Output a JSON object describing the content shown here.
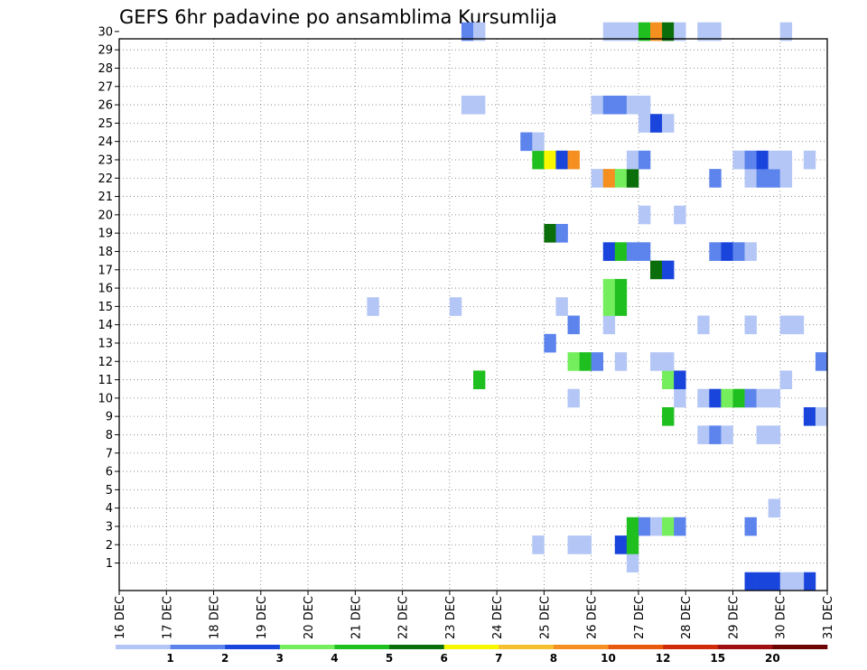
{
  "chart_data": {
    "type": "heatmap",
    "title": "GEFS 6hr padavine po ansamblima Kursumlija",
    "xlabel": "",
    "ylabel": "",
    "x_ticks": [
      "16 DEC",
      "17 DEC",
      "18 DEC",
      "19 DEC",
      "20 DEC",
      "21 DEC",
      "22 DEC",
      "23 DEC",
      "24 DEC",
      "25 DEC",
      "26 DEC",
      "27 DEC",
      "28 DEC",
      "29 DEC",
      "30 DEC",
      "31 DEC"
    ],
    "y_ticks": [
      1,
      2,
      3,
      4,
      5,
      6,
      7,
      8,
      9,
      10,
      11,
      12,
      13,
      14,
      15,
      16,
      17,
      18,
      19,
      20,
      21,
      22,
      23,
      24,
      25,
      26,
      27,
      28,
      29,
      30
    ],
    "ylim": [
      0,
      30
    ],
    "grid": true,
    "x_unit": "6-hour step from 16 DEC 00",
    "legend": {
      "position": "bottom",
      "labels": [
        "1",
        "2",
        "3",
        "4",
        "5",
        "6",
        "7",
        "8",
        "10",
        "12",
        "15",
        "20"
      ],
      "colors": [
        "#b3c6f5",
        "#5c84ec",
        "#1a45dc",
        "#74ee5c",
        "#1fbf1f",
        "#0a6e0a",
        "#f7f700",
        "#f5bf30",
        "#f58f20",
        "#ea5a0d",
        "#d12a0a",
        "#a11010",
        "#6e0505"
      ]
    },
    "cells": [
      {
        "m": 0,
        "x": 53,
        "c": 2
      },
      {
        "m": 0,
        "x": 54,
        "c": 2
      },
      {
        "m": 0,
        "x": 55,
        "c": 2
      },
      {
        "m": 0,
        "x": 58,
        "c": 2
      },
      {
        "m": 0,
        "x": 56,
        "c": 0
      },
      {
        "m": 0,
        "x": 57,
        "c": 0
      },
      {
        "m": 1,
        "x": 43,
        "c": 0
      },
      {
        "m": 2,
        "x": 35,
        "c": 0
      },
      {
        "m": 2,
        "x": 38,
        "c": 0
      },
      {
        "m": 2,
        "x": 39,
        "c": 0
      },
      {
        "m": 2,
        "x": 42,
        "c": 2
      },
      {
        "m": 2,
        "x": 43,
        "c": 4
      },
      {
        "m": 3,
        "x": 43,
        "c": 4
      },
      {
        "m": 3,
        "x": 44,
        "c": 1
      },
      {
        "m": 3,
        "x": 45,
        "c": 0
      },
      {
        "m": 3,
        "x": 46,
        "c": 3
      },
      {
        "m": 3,
        "x": 47,
        "c": 1
      },
      {
        "m": 3,
        "x": 53,
        "c": 1
      },
      {
        "m": 4,
        "x": 55,
        "c": 0
      },
      {
        "m": 8,
        "x": 49,
        "c": 0
      },
      {
        "m": 8,
        "x": 50,
        "c": 1
      },
      {
        "m": 8,
        "x": 51,
        "c": 0
      },
      {
        "m": 8,
        "x": 54,
        "c": 0
      },
      {
        "m": 8,
        "x": 55,
        "c": 0
      },
      {
        "m": 9,
        "x": 46,
        "c": 4
      },
      {
        "m": 9,
        "x": 58,
        "c": 2
      },
      {
        "m": 9,
        "x": 59,
        "c": 0
      },
      {
        "m": 10,
        "x": 38,
        "c": 0
      },
      {
        "m": 10,
        "x": 47,
        "c": 0
      },
      {
        "m": 10,
        "x": 49,
        "c": 0
      },
      {
        "m": 10,
        "x": 50,
        "c": 2
      },
      {
        "m": 10,
        "x": 51,
        "c": 3
      },
      {
        "m": 10,
        "x": 52,
        "c": 4
      },
      {
        "m": 10,
        "x": 53,
        "c": 1
      },
      {
        "m": 10,
        "x": 54,
        "c": 0
      },
      {
        "m": 10,
        "x": 55,
        "c": 0
      },
      {
        "m": 11,
        "x": 30,
        "c": 4
      },
      {
        "m": 11,
        "x": 46,
        "c": 3
      },
      {
        "m": 11,
        "x": 47,
        "c": 2
      },
      {
        "m": 11,
        "x": 56,
        "c": 0
      },
      {
        "m": 12,
        "x": 38,
        "c": 3
      },
      {
        "m": 12,
        "x": 39,
        "c": 4
      },
      {
        "m": 12,
        "x": 40,
        "c": 1
      },
      {
        "m": 12,
        "x": 42,
        "c": 0
      },
      {
        "m": 12,
        "x": 45,
        "c": 0
      },
      {
        "m": 12,
        "x": 46,
        "c": 0
      },
      {
        "m": 12,
        "x": 59,
        "c": 1
      },
      {
        "m": 13,
        "x": 36,
        "c": 1
      },
      {
        "m": 14,
        "x": 38,
        "c": 1
      },
      {
        "m": 14,
        "x": 41,
        "c": 0
      },
      {
        "m": 14,
        "x": 49,
        "c": 0
      },
      {
        "m": 14,
        "x": 53,
        "c": 0
      },
      {
        "m": 14,
        "x": 56,
        "c": 0
      },
      {
        "m": 14,
        "x": 57,
        "c": 0
      },
      {
        "m": 15,
        "x": 21,
        "c": 0
      },
      {
        "m": 15,
        "x": 28,
        "c": 0
      },
      {
        "m": 15,
        "x": 37,
        "c": 0
      },
      {
        "m": 15,
        "x": 41,
        "c": 3
      },
      {
        "m": 15,
        "x": 42,
        "c": 4
      },
      {
        "m": 16,
        "x": 41,
        "c": 3
      },
      {
        "m": 16,
        "x": 42,
        "c": 4
      },
      {
        "m": 17,
        "x": 45,
        "c": 5
      },
      {
        "m": 17,
        "x": 46,
        "c": 2
      },
      {
        "m": 18,
        "x": 41,
        "c": 2
      },
      {
        "m": 18,
        "x": 42,
        "c": 4
      },
      {
        "m": 18,
        "x": 43,
        "c": 1
      },
      {
        "m": 18,
        "x": 44,
        "c": 1
      },
      {
        "m": 18,
        "x": 50,
        "c": 1
      },
      {
        "m": 18,
        "x": 51,
        "c": 2
      },
      {
        "m": 18,
        "x": 52,
        "c": 1
      },
      {
        "m": 18,
        "x": 53,
        "c": 0
      },
      {
        "m": 19,
        "x": 36,
        "c": 5
      },
      {
        "m": 19,
        "x": 37,
        "c": 1
      },
      {
        "m": 20,
        "x": 44,
        "c": 0
      },
      {
        "m": 20,
        "x": 47,
        "c": 0
      },
      {
        "m": 22,
        "x": 40,
        "c": 0
      },
      {
        "m": 22,
        "x": 41,
        "c": 8
      },
      {
        "m": 22,
        "x": 42,
        "c": 3
      },
      {
        "m": 22,
        "x": 43,
        "c": 5
      },
      {
        "m": 22,
        "x": 50,
        "c": 1
      },
      {
        "m": 22,
        "x": 53,
        "c": 0
      },
      {
        "m": 22,
        "x": 54,
        "c": 1
      },
      {
        "m": 22,
        "x": 55,
        "c": 1
      },
      {
        "m": 22,
        "x": 56,
        "c": 0
      },
      {
        "m": 23,
        "x": 35,
        "c": 4
      },
      {
        "m": 23,
        "x": 36,
        "c": 6
      },
      {
        "m": 23,
        "x": 37,
        "c": 2
      },
      {
        "m": 23,
        "x": 38,
        "c": 8
      },
      {
        "m": 23,
        "x": 43,
        "c": 0
      },
      {
        "m": 23,
        "x": 44,
        "c": 1
      },
      {
        "m": 23,
        "x": 52,
        "c": 0
      },
      {
        "m": 23,
        "x": 53,
        "c": 1
      },
      {
        "m": 23,
        "x": 54,
        "c": 2
      },
      {
        "m": 23,
        "x": 55,
        "c": 0
      },
      {
        "m": 23,
        "x": 56,
        "c": 0
      },
      {
        "m": 23,
        "x": 58,
        "c": 0
      },
      {
        "m": 24,
        "x": 34,
        "c": 1
      },
      {
        "m": 24,
        "x": 35,
        "c": 0
      },
      {
        "m": 25,
        "x": 44,
        "c": 0
      },
      {
        "m": 25,
        "x": 45,
        "c": 2
      },
      {
        "m": 25,
        "x": 46,
        "c": 0
      },
      {
        "m": 26,
        "x": 29,
        "c": 0
      },
      {
        "m": 26,
        "x": 30,
        "c": 0
      },
      {
        "m": 26,
        "x": 40,
        "c": 0
      },
      {
        "m": 26,
        "x": 41,
        "c": 1
      },
      {
        "m": 26,
        "x": 42,
        "c": 1
      },
      {
        "m": 26,
        "x": 43,
        "c": 0
      },
      {
        "m": 26,
        "x": 44,
        "c": 0
      },
      {
        "m": 30,
        "x": 29,
        "c": 1
      },
      {
        "m": 30,
        "x": 30,
        "c": 0
      },
      {
        "m": 30,
        "x": 41,
        "c": 0
      },
      {
        "m": 30,
        "x": 42,
        "c": 0
      },
      {
        "m": 30,
        "x": 43,
        "c": 0
      },
      {
        "m": 30,
        "x": 44,
        "c": 4
      },
      {
        "m": 30,
        "x": 45,
        "c": 8
      },
      {
        "m": 30,
        "x": 46,
        "c": 5
      },
      {
        "m": 30,
        "x": 47,
        "c": 0
      },
      {
        "m": 30,
        "x": 49,
        "c": 0
      },
      {
        "m": 30,
        "x": 50,
        "c": 0
      },
      {
        "m": 30,
        "x": 56,
        "c": 0
      }
    ]
  }
}
